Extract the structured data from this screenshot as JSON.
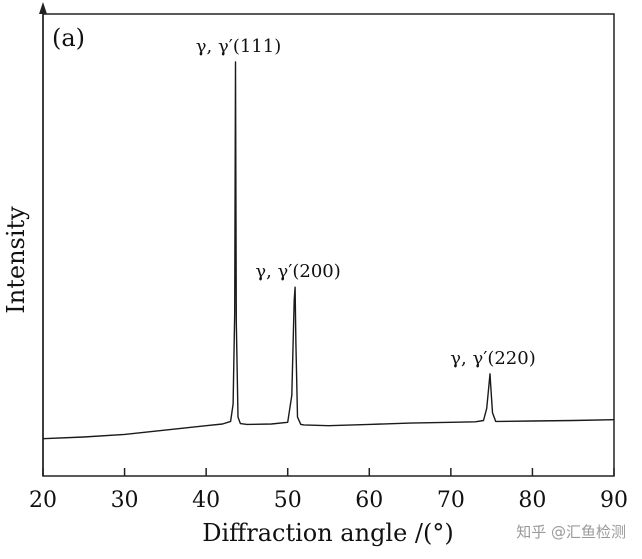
{
  "chart_data": {
    "type": "line",
    "panel_label": "(a)",
    "title": "",
    "xlabel": "Diffraction angle /(°)",
    "ylabel": "Intensity",
    "xlim": [
      20,
      90
    ],
    "ylim": [
      0,
      100
    ],
    "x_ticks": [
      20,
      30,
      40,
      50,
      60,
      70,
      80,
      90
    ],
    "y_ticks_shown": false,
    "grid": false,
    "series": [
      {
        "x": [
          20,
          25,
          30,
          35,
          40,
          42,
          43.0,
          43.3,
          43.5,
          43.6,
          43.7,
          43.9,
          44.2,
          45,
          48,
          50.0,
          50.5,
          50.8,
          50.9,
          51.0,
          51.2,
          51.6,
          52,
          55,
          60,
          65,
          70,
          73,
          74.0,
          74.4,
          74.7,
          74.8,
          74.9,
          75.1,
          75.5,
          76,
          80,
          85,
          90
        ],
        "y": [
          13,
          13.4,
          14,
          15,
          16,
          16.4,
          17,
          21,
          42,
          100,
          40,
          18,
          16.5,
          16.3,
          16.4,
          16.8,
          23,
          45,
          48,
          35,
          18,
          16.3,
          16.2,
          16,
          16.3,
          16.6,
          16.8,
          16.9,
          17.2,
          20,
          26,
          28,
          25,
          19,
          17,
          17,
          17.1,
          17.2,
          17.4
        ]
      }
    ],
    "annotations": [
      {
        "text": "γ, γ′(111)",
        "x": 43.6,
        "y": 100
      },
      {
        "text": "γ, γ′(200)",
        "x": 50.9,
        "y": 48
      },
      {
        "text": "γ, γ′(220)",
        "x": 74.8,
        "y": 28
      }
    ]
  },
  "watermark": "知乎 @汇鱼检测"
}
